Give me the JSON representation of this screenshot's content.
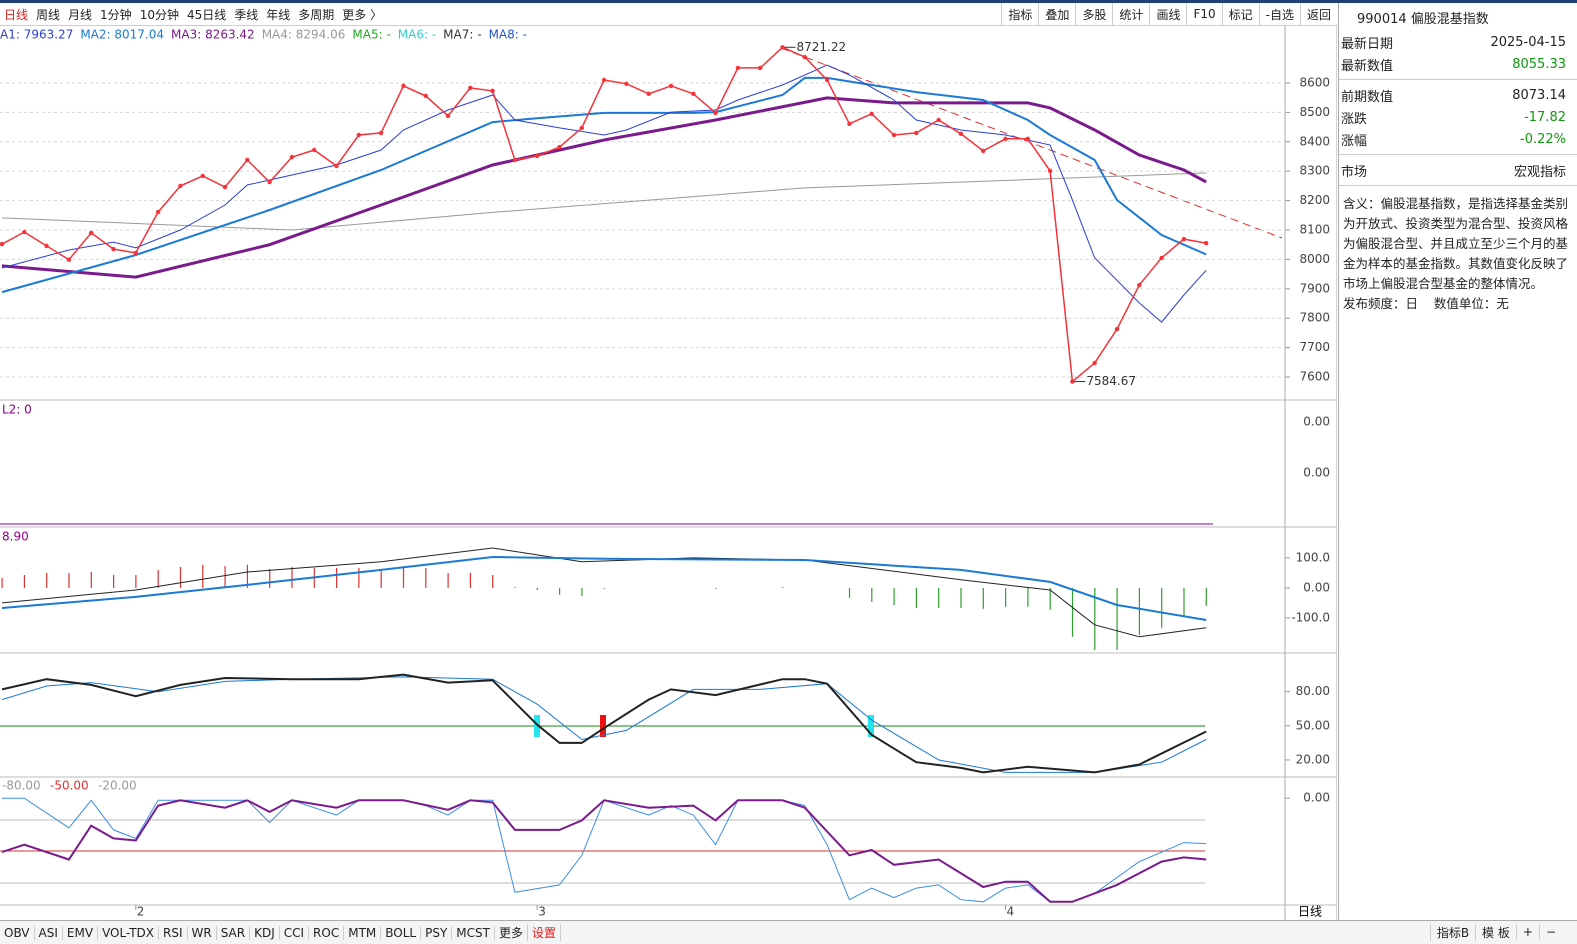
{
  "periods": [
    "日线",
    "周线",
    "月线",
    "1分钟",
    "10分钟",
    "45日线",
    "季线",
    "年线",
    "多周期",
    "更多 〉"
  ],
  "tools": [
    "指标",
    "叠加",
    "多股",
    "统计",
    "画线",
    "F10",
    "标记",
    "-自选",
    "返回"
  ],
  "chart_data": [
    {
      "type": "line",
      "grid": true,
      "categories": [
        null,
        null,
        null,
        null,
        null,
        null,
        "2",
        null,
        null,
        null,
        null,
        null,
        null,
        null,
        null,
        null,
        null,
        null,
        null,
        null,
        null,
        null,
        null,
        null,
        "3",
        null,
        null,
        null,
        null,
        null,
        null,
        null,
        null,
        null,
        null,
        null,
        null,
        null,
        null,
        null,
        null,
        null,
        null,
        null,
        null,
        "4",
        null,
        null,
        null,
        null,
        null,
        null,
        null,
        null,
        null
      ],
      "ylim": [
        7522,
        8797
      ],
      "yticks": [
        7600,
        7700,
        7800,
        7900,
        8000,
        8100,
        8200,
        8300,
        8400,
        8500,
        8600
      ],
      "series": [
        {
          "color": "#999999",
          "width": 1,
          "x": [
            0,
            13,
            22,
            36,
            54
          ],
          "values": [
            8141,
            8100,
            8160,
            8243,
            8294.06
          ],
          "legend": "MA4: 8294.06"
        },
        {
          "color": "#7b1a8c",
          "width": 3,
          "x": [
            0,
            6,
            12,
            17,
            22,
            27,
            32,
            37,
            40,
            46,
            47,
            49,
            51,
            53,
            54
          ],
          "values": [
            7978,
            7940,
            8050,
            8185,
            8321,
            8406,
            8474,
            8549,
            8532,
            8532,
            8515,
            8440,
            8355,
            8304,
            8263.42
          ],
          "legend": "MA3: 8263.42"
        },
        {
          "color": "#1a7ad4",
          "width": 2,
          "x": [
            0,
            6,
            12,
            17,
            22,
            24,
            27,
            31,
            32,
            35,
            36,
            37,
            39,
            41,
            44,
            46,
            47,
            49,
            50,
            52,
            54
          ],
          "values": [
            7889,
            8015,
            8168,
            8304,
            8467,
            8480,
            8498,
            8498,
            8501,
            8559,
            8617,
            8617,
            8593,
            8569,
            8542,
            8474,
            8423,
            8338,
            8202,
            8083,
            8017.04
          ],
          "legend": "MA2: 8017.04"
        },
        {
          "color": "#2d3fd6",
          "width": 1,
          "x": [
            0,
            3,
            5,
            6,
            8,
            10,
            11,
            13,
            15,
            17,
            18,
            20,
            22,
            23,
            25,
            27,
            28,
            30,
            32,
            33,
            35,
            37,
            38,
            40,
            41,
            43,
            45,
            47,
            48,
            49,
            51,
            52,
            53,
            54
          ],
          "values": [
            7971,
            8032,
            8059,
            8039,
            8100,
            8185,
            8253,
            8287,
            8321,
            8372,
            8440,
            8508,
            8559,
            8474,
            8447,
            8423,
            8440,
            8501,
            8508,
            8542,
            8593,
            8661,
            8627,
            8542,
            8474,
            8440,
            8423,
            8389,
            8202,
            8005,
            7852,
            7787,
            7879,
            7963.27
          ],
          "legend": "A1: 7963.27"
        },
        {
          "color": "#f5333a",
          "width": 1.5,
          "markers": true,
          "values": [
            8052,
            8093,
            8046,
            7999,
            8090,
            8035,
            8022,
            8161,
            8250,
            8284,
            8246,
            8338,
            8263,
            8348,
            8372,
            8318,
            8423,
            8430,
            8590,
            8556,
            8488,
            8583,
            8573,
            8338,
            8352,
            8382,
            8447,
            8610,
            8597,
            8563,
            8590,
            8563,
            8498,
            8651,
            8651,
            8721.22,
            8688,
            8610,
            8461,
            8495,
            8423,
            8430,
            8474,
            8427,
            8369,
            8410,
            8410,
            8301,
            7584.67,
            7648,
            7763,
            7913,
            8005,
            8069,
            8055.33
          ]
        }
      ],
      "legend_extra": [
        {
          "text": "MA5: -",
          "color": "#22aa22"
        },
        {
          "text": "MA6: -",
          "color": "#33cccc"
        },
        {
          "text": "MA7: -",
          "color": "#333333"
        },
        {
          "text": "MA8: -",
          "color": "#2255cc"
        }
      ],
      "annotations": [
        {
          "text": "8721.22",
          "index": 35
        },
        {
          "text": "7584.67",
          "index": 48
        }
      ]
    },
    {
      "type": "indicator",
      "label": "L2: 0",
      "label_color": "#8b008b",
      "axis_texts": [
        "0.00",
        "0.00"
      ]
    },
    {
      "type": "macd",
      "label": "8.90",
      "label_color": "#8b008b",
      "ylim": [
        -217,
        203
      ],
      "yticks": [
        {
          "value": 100,
          "label": "100.0"
        },
        {
          "value": 0,
          "label": "0.00"
        },
        {
          "value": -100,
          "label": "-100.0"
        }
      ],
      "up_color": "#e03030",
      "down_color": "#30a030",
      "bars": [
        33,
        43,
        50,
        50,
        53,
        43,
        43,
        60,
        70,
        77,
        73,
        77,
        63,
        70,
        67,
        67,
        67,
        60,
        67,
        67,
        50,
        50,
        43,
        3,
        -7,
        -23,
        -27,
        -3,
        0,
        0,
        0,
        0,
        -3,
        0,
        0,
        3,
        0,
        0,
        -33,
        -47,
        -57,
        -67,
        -67,
        -67,
        -70,
        -63,
        -63,
        -73,
        -163,
        -207,
        -207,
        -157,
        -133,
        -97,
        -60
      ],
      "series": [
        {
          "color": "#222222",
          "width": 1,
          "x": [
            0,
            6,
            11,
            17,
            22,
            26,
            31,
            36,
            43,
            47,
            49,
            51,
            54
          ],
          "values": [
            -50,
            -7,
            53,
            87,
            133,
            87,
            100,
            93,
            27,
            -7,
            -123,
            -163,
            -133
          ]
        },
        {
          "color": "#1a7ad4",
          "width": 2,
          "x": [
            0,
            6,
            11,
            17,
            22,
            27,
            36,
            43,
            47,
            50,
            54
          ],
          "values": [
            -67,
            -30,
            10,
            60,
            103,
            97,
            93,
            60,
            20,
            -57,
            -107
          ]
        }
      ]
    },
    {
      "type": "line",
      "ylim": [
        5,
        114
      ],
      "yticks": [
        {
          "value": 80,
          "label": "80.00"
        },
        {
          "value": 50,
          "label": "50.00"
        },
        {
          "value": 20,
          "label": "20.00"
        }
      ],
      "series": [
        {
          "color": "#1a7ad4",
          "width": 1,
          "x": [
            0,
            2,
            4,
            7,
            10,
            13,
            18,
            22,
            24,
            26,
            28,
            31,
            34,
            37,
            39,
            42,
            45,
            49,
            52,
            54
          ],
          "values": [
            73,
            85,
            88,
            80,
            89,
            91,
            93,
            91,
            69,
            38,
            46,
            82,
            82,
            87,
            55,
            20,
            9,
            9,
            18,
            38
          ]
        },
        {
          "color": "#222222",
          "width": 2,
          "x": [
            0,
            2,
            4,
            6,
            8,
            10,
            13,
            16,
            18,
            20,
            22,
            24,
            25,
            26,
            27,
            29,
            30,
            32,
            35,
            36,
            37,
            39,
            41,
            43,
            44,
            46,
            49,
            51,
            54
          ],
          "values": [
            82,
            91,
            86,
            76,
            86,
            92,
            91,
            91,
            95,
            88,
            90,
            51,
            35,
            35,
            48,
            73,
            82,
            77,
            91,
            91,
            87,
            42,
            18,
            13,
            9,
            14,
            9,
            16,
            45
          ]
        }
      ]
    },
    {
      "type": "line",
      "ylim": [
        -101,
        20
      ],
      "yticks": [
        {
          "value": 0,
          "label": "0.00"
        }
      ],
      "labels": [
        {
          "text": "-80.00",
          "color": "#999999"
        },
        {
          "text": "-50.00",
          "color": "#e03030"
        },
        {
          "text": "-20.00",
          "color": "#999999"
        }
      ],
      "series": [
        {
          "color": "#3a8ee6",
          "width": 1,
          "x": [
            0,
            1,
            3,
            4,
            5,
            6,
            7,
            8,
            9,
            11,
            12,
            13,
            15,
            16,
            18,
            19,
            20,
            21,
            22,
            23,
            25,
            26,
            27,
            29,
            30,
            31,
            32,
            33,
            35,
            36,
            37,
            38,
            39,
            40,
            41,
            42,
            43,
            44,
            45,
            46,
            47,
            48,
            49,
            51,
            53,
            54
          ],
          "values": [
            0,
            0,
            -28,
            -2,
            -30,
            -38,
            -2,
            -2,
            -2,
            -2,
            -23,
            -2,
            -16,
            -2,
            -2,
            -7,
            -16,
            -2,
            -2,
            -89,
            -82,
            -54,
            -2,
            -16,
            -7,
            -16,
            -44,
            -2,
            -2,
            -7,
            -44,
            -96,
            -85,
            -94,
            -85,
            -82,
            -96,
            -98,
            -85,
            -82,
            -98,
            -98,
            -90,
            -60,
            -42,
            -43
          ]
        },
        {
          "color": "#7b1a8c",
          "width": 2,
          "x": [
            0,
            1,
            3,
            4,
            5,
            6,
            7,
            8,
            10,
            11,
            12,
            13,
            15,
            16,
            18,
            20,
            21,
            22,
            23,
            25,
            26,
            27,
            29,
            31,
            32,
            33,
            35,
            36,
            38,
            39,
            40,
            42,
            44,
            45,
            46,
            47,
            48,
            50,
            52,
            53,
            54
          ],
          "values": [
            -51,
            -44,
            -58,
            -26,
            -38,
            -40,
            -7,
            -2,
            -9,
            -2,
            -13,
            -2,
            -9,
            -2,
            -2,
            -11,
            -2,
            -4,
            -30,
            -30,
            -21,
            -2,
            -9,
            -7,
            -21,
            -2,
            -2,
            -9,
            -54,
            -49,
            -63,
            -58,
            -84,
            -79,
            -79,
            -98,
            -98,
            -82,
            -60,
            -56,
            -58
          ]
        }
      ]
    }
  ],
  "info": {
    "title": "990014 偏股混基指数",
    "rows": [
      {
        "label": "最新日期",
        "value": "2025-04-15"
      },
      {
        "label": "最新数值",
        "value": "8055.33",
        "color": "#119911"
      },
      {
        "label": "前期数值",
        "value": "8073.14"
      },
      {
        "label": "涨跌",
        "value": "-17.82",
        "color": "#119911"
      },
      {
        "label": "涨幅",
        "value": "-0.22%",
        "color": "#119911"
      },
      {
        "label": "市场",
        "value": "宏观指标"
      }
    ],
    "description": "含义：偏股混基指数，是指选择基金类别为开放式、投资类型为混合型、投资风格为偏股混合型、并且成立至少三个月的基金为样本的基金指数。其数值变化反映了市场上偏股混合型基金的整体情况。",
    "frequency": "发布频度：日",
    "unit": "数值单位：无"
  },
  "axis_corner": "日线",
  "tabs": [
    "OBV",
    "ASI",
    "EMV",
    "VOL-TDX",
    "RSI",
    "WR",
    "SAR",
    "KDJ",
    "CCI",
    "ROC",
    "MTM",
    "BOLL",
    "PSY",
    "MCST",
    "更多",
    "设置"
  ],
  "tabs_right": [
    "指标B",
    "模 板",
    "+",
    "−"
  ]
}
